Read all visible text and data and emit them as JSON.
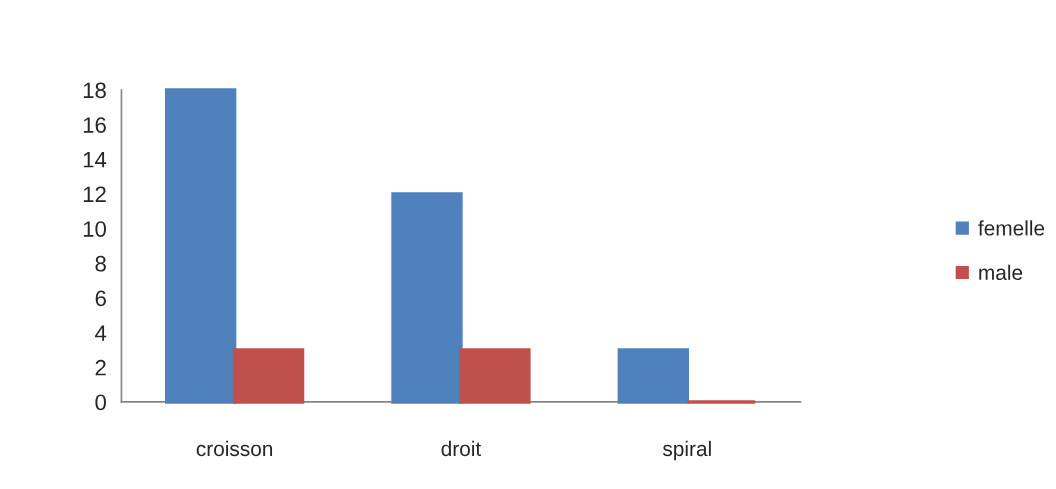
{
  "chart_data": {
    "type": "bar",
    "categories": [
      "croisson",
      "droit",
      "spiral"
    ],
    "series": [
      {
        "name": "femelle",
        "color": "#4f81bd",
        "values": [
          18,
          12,
          3
        ]
      },
      {
        "name": "male",
        "color": "#c0504d",
        "values": [
          3,
          3,
          0
        ]
      }
    ],
    "ylim": [
      0,
      18
    ],
    "yticks": [
      0,
      2,
      4,
      6,
      8,
      10,
      12,
      14,
      16,
      18
    ],
    "grid": false,
    "legend": "right"
  }
}
